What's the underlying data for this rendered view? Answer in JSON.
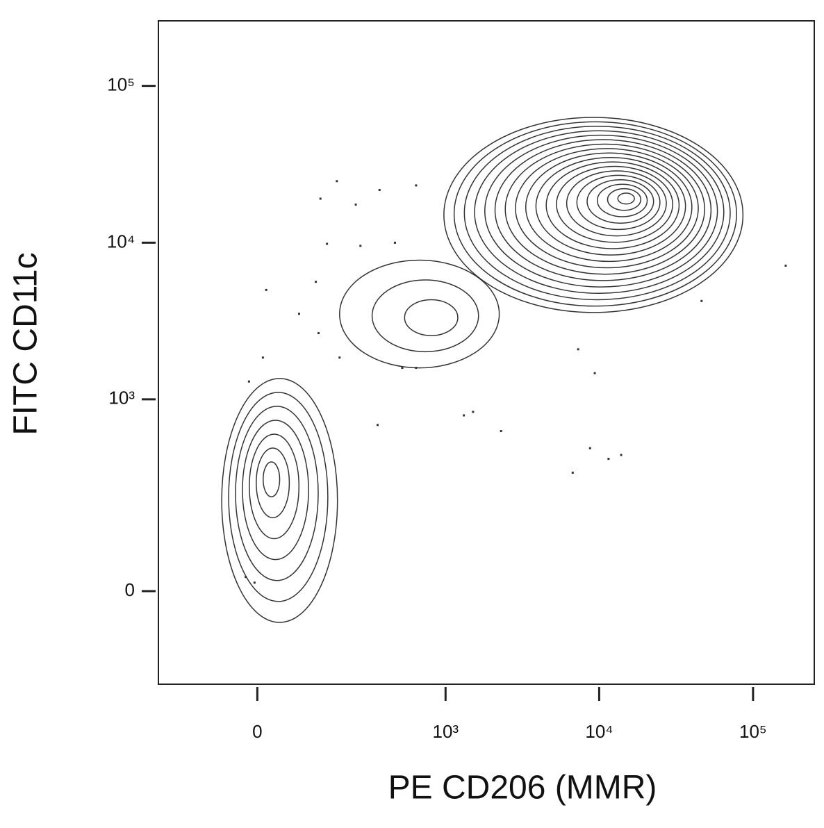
{
  "chart_data": {
    "type": "contour",
    "x_label": "PE CD206 (MMR)",
    "y_label": "FITC CD11c",
    "scale": "biexponential",
    "xlim": [
      -250,
      250000
    ],
    "ylim": [
      -220,
      260000
    ],
    "xticks": [
      0,
      {
        "value": 1000,
        "label": "10³"
      },
      {
        "value": 10000,
        "label": "10⁴"
      },
      {
        "value": 100000,
        "label": "10⁵"
      }
    ],
    "yticks": [
      0,
      {
        "value": 1000,
        "label": "10³"
      },
      {
        "value": 10000,
        "label": "10⁴"
      },
      {
        "value": 100000,
        "label": "10⁵"
      }
    ],
    "color": "#333333",
    "populations": [
      {
        "x": 23,
        "y": 315,
        "x_range": [
          -67,
          181
        ],
        "y_range": [
          -57,
          1360
        ],
        "levels": 7
      },
      {
        "x": 880,
        "y": 3240,
        "x_range": [
          188,
          2240
        ],
        "y_range": [
          1590,
          7740
        ],
        "levels": 3
      },
      {
        "x": 15400,
        "y": 19400,
        "x_range": [
          975,
          86000
        ],
        "y_range": [
          3590,
          63000
        ],
        "levels": 18
      }
    ],
    "points": {
      "x": [
        16,
        131,
        179,
        364,
        640,
        248,
        149,
        268,
        463,
        119,
        80,
        126,
        188,
        518,
        353,
        1317,
        1512,
        2300,
        6730,
        8720,
        11500,
        13900,
        7300,
        9360,
        163000,
        46300,
        -21,
        -5,
        -15,
        10,
        640
      ],
      "y": [
        5000,
        19100,
        24700,
        21700,
        23200,
        17500,
        9840,
        9550,
        10000,
        5630,
        3520,
        2650,
        1850,
        1590,
        683,
        788,
        830,
        624,
        331,
        482,
        410,
        435,
        2090,
        1470,
        7140,
        4250,
        25,
        15,
        1300,
        1850,
        1590
      ]
    }
  }
}
